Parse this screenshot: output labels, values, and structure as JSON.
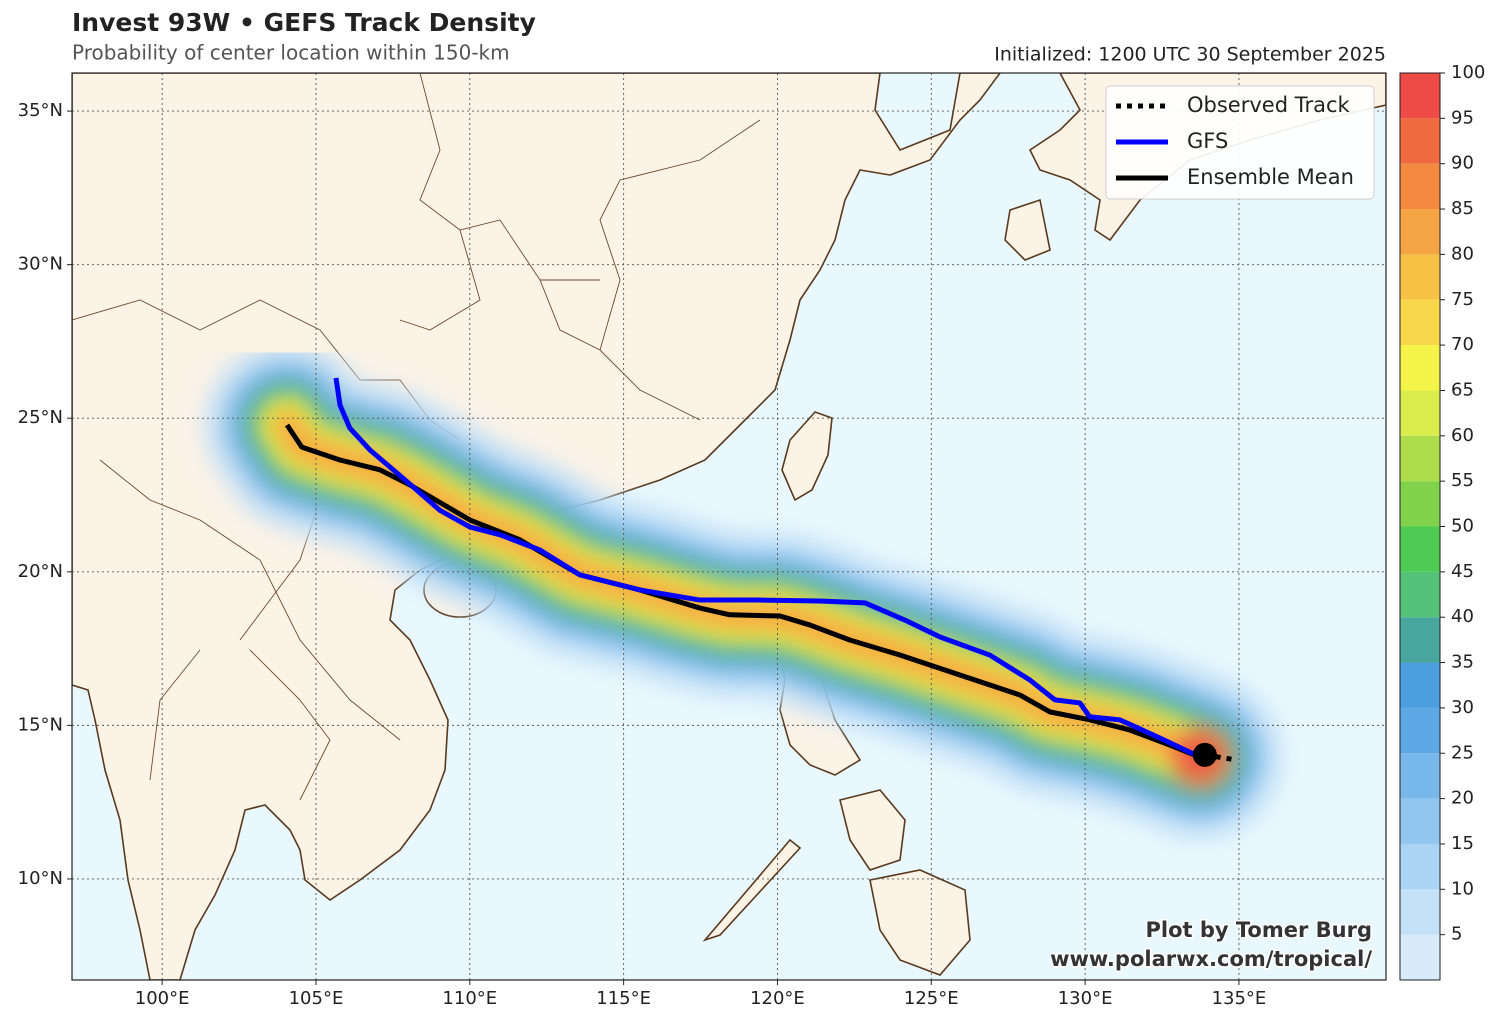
{
  "map": {
    "title": "Invest 93W • GEFS Track Density",
    "subtitle": "Probability of center location within 150-km",
    "initialized": "Initialized: 1200 UTC 30 September 2025",
    "xlim": [
      97.07,
      139.78
    ],
    "ylim": [
      6.71,
      36.24
    ],
    "xticks": [
      {
        "value": 100,
        "label": "100°E"
      },
      {
        "value": 105,
        "label": "105°E"
      },
      {
        "value": 110,
        "label": "110°E"
      },
      {
        "value": 115,
        "label": "115°E"
      },
      {
        "value": 120,
        "label": "120°E"
      },
      {
        "value": 125,
        "label": "125°E"
      },
      {
        "value": 130,
        "label": "130°E"
      },
      {
        "value": 135,
        "label": "135°E"
      }
    ],
    "yticks": [
      {
        "value": 10,
        "label": "10°N"
      },
      {
        "value": 15,
        "label": "15°N"
      },
      {
        "value": 20,
        "label": "20°N"
      },
      {
        "value": 25,
        "label": "25°N"
      },
      {
        "value": 30,
        "label": "30°N"
      },
      {
        "value": 35,
        "label": "35°N"
      }
    ],
    "grid": true,
    "legend": "upper right",
    "tracks": [
      {
        "name": "Observed Track",
        "color": "#000000",
        "style": "dotted",
        "lon": [
          133.89,
          134.87
        ],
        "lat": [
          14.04,
          13.88
        ]
      },
      {
        "name": "GFS",
        "color": "#0000ff",
        "style": "solid",
        "lon": [
          105.65,
          105.78,
          106.1,
          106.75,
          107.9,
          109.03,
          110.0,
          111.0,
          112.28,
          113.58,
          115.53,
          117.48,
          119.43,
          121.38,
          122.84,
          124.14,
          125.28,
          126.9,
          128.2,
          129.02,
          129.83,
          130.15,
          131.13,
          132.43,
          133.73
        ],
        "lat": [
          26.31,
          25.43,
          24.68,
          23.97,
          22.99,
          22.0,
          21.46,
          21.2,
          20.71,
          19.9,
          19.41,
          19.08,
          19.08,
          19.05,
          18.99,
          18.43,
          17.88,
          17.29,
          16.48,
          15.83,
          15.73,
          15.28,
          15.18,
          14.59,
          13.97
        ]
      },
      {
        "name": "Ensemble Mean",
        "color": "#000000",
        "style": "solid",
        "lon": [
          104.06,
          104.54,
          105.78,
          107.08,
          108.05,
          110.0,
          111.63,
          113.58,
          115.53,
          117.48,
          118.45,
          120.08,
          121.05,
          122.35,
          123.98,
          125.93,
          127.88,
          128.85,
          130.15,
          131.45,
          132.75,
          133.73
        ],
        "lat": [
          24.78,
          24.06,
          23.64,
          23.32,
          22.83,
          21.69,
          21.04,
          19.9,
          19.41,
          18.82,
          18.6,
          18.56,
          18.27,
          17.78,
          17.29,
          16.64,
          15.99,
          15.44,
          15.18,
          14.85,
          14.36,
          13.97
        ]
      }
    ],
    "colorbar": {
      "range": [
        0,
        100
      ],
      "ticks": [
        5,
        10,
        15,
        20,
        25,
        30,
        35,
        40,
        45,
        50,
        55,
        60,
        65,
        70,
        75,
        80,
        85,
        90,
        95,
        100
      ],
      "colors": [
        "#d7ebf9",
        "#c4e1f7",
        "#abd3f3",
        "#93c6ef",
        "#78b7ea",
        "#5ea9e5",
        "#4b9fde",
        "#47a79e",
        "#55c27a",
        "#4dcb55",
        "#80d24b",
        "#aedd4b",
        "#daec4b",
        "#f4f349",
        "#f8d84a",
        "#f7c146",
        "#f5a543",
        "#f38a40",
        "#f06a3f",
        "#ee4a46"
      ]
    },
    "credits": [
      "Plot by Tomer Burg",
      "www.polarwx.com/tropical/"
    ]
  }
}
